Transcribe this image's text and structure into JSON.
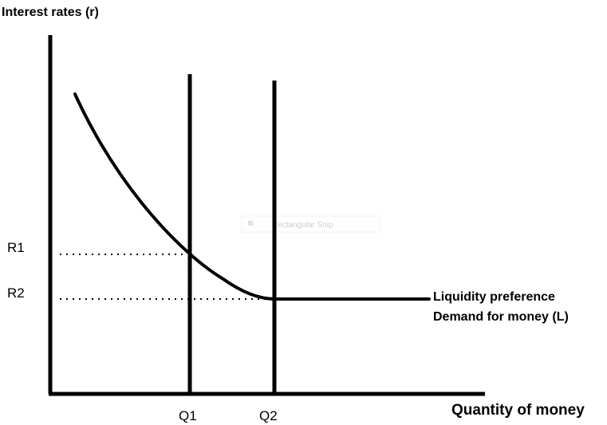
{
  "title": "",
  "y_axis": {
    "label": "Interest rates (r)"
  },
  "x_axis": {
    "label": "Quantity of money"
  },
  "levels": {
    "rates": [
      {
        "id": "r1",
        "label": "R1"
      },
      {
        "id": "r2",
        "label": "R2"
      }
    ],
    "quantities": [
      {
        "id": "q1",
        "label": "Q1"
      },
      {
        "id": "q2",
        "label": "Q2"
      }
    ]
  },
  "curve": {
    "label_line1": "Liquidity preference",
    "label_line2": "Demand for money (L)"
  },
  "overlay": {
    "snip_text": "Rectangular Snip",
    "color": "#c9ced6"
  },
  "colors": {
    "line": "#000000",
    "background": "#ffffff"
  }
}
